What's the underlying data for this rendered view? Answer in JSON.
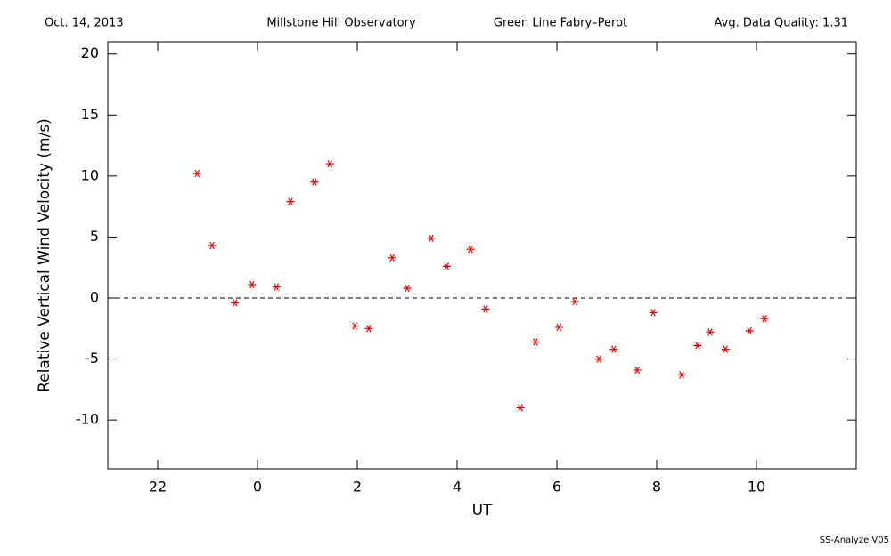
{
  "chart_data": {
    "type": "scatter",
    "date": "Oct. 14, 2013",
    "observatory": "Millstone Hill Observatory",
    "instrument": "Green Line Fabry–Perot",
    "quality": "Avg. Data Quality: 1.31",
    "footer": "SS-Analyze V05",
    "x_label": "UT",
    "y_label": "Relative Vertical Wind Velocity (m/s)",
    "xlim": [
      -3,
      12
    ],
    "ylim": [
      -14,
      21
    ],
    "xticks": [
      {
        "value": -2,
        "label": "22"
      },
      0,
      2,
      4,
      6,
      8,
      10
    ],
    "yticks": [
      -10,
      -5,
      0,
      5,
      10,
      15,
      20
    ],
    "reference_line": 0,
    "color": "#ee0000",
    "x": [
      -1.21,
      -0.91,
      -0.45,
      -0.11,
      0.38,
      0.66,
      1.14,
      1.45,
      1.95,
      2.23,
      2.7,
      3.0,
      3.48,
      3.79,
      4.27,
      4.57,
      5.27,
      5.57,
      6.04,
      6.36,
      6.84,
      7.14,
      7.61,
      7.93,
      8.5,
      8.82,
      9.07,
      9.38,
      9.86,
      10.16
    ],
    "values": [
      10.2,
      4.3,
      -0.4,
      1.1,
      0.9,
      7.9,
      9.5,
      11.0,
      -2.3,
      -2.5,
      3.3,
      0.8,
      4.9,
      2.6,
      4.0,
      -0.9,
      -9.0,
      -3.6,
      -2.4,
      -0.3,
      -5.0,
      -4.2,
      -5.9,
      -1.2,
      -6.3,
      -3.9,
      -2.8,
      -4.2,
      -2.7,
      -1.7
    ]
  }
}
